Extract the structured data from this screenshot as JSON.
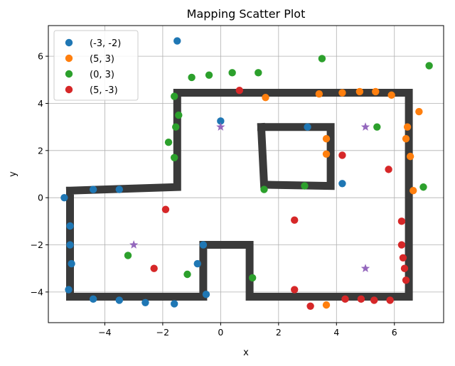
{
  "chart_data": {
    "type": "scatter",
    "title": "Mapping Scatter Plot",
    "xlabel": "x",
    "ylabel": "y",
    "xlim": [
      -5.95,
      7.7
    ],
    "ylim": [
      -5.3,
      7.3
    ],
    "xticks": [
      -4,
      -2,
      0,
      2,
      4,
      6
    ],
    "yticks": [
      -4,
      -2,
      0,
      2,
      4,
      6
    ],
    "xtick_labels": [
      "−4",
      "−2",
      "0",
      "2",
      "4",
      "6"
    ],
    "ytick_labels": [
      "−4",
      "−2",
      "0",
      "2",
      "4",
      "6"
    ],
    "grid": true,
    "legend_position": "top-left",
    "series": [
      {
        "name": "(-3, -2)",
        "color": "#1f77b4",
        "marker": "circle",
        "points": [
          [
            -1.5,
            6.65
          ],
          [
            0.0,
            3.25
          ],
          [
            -5.4,
            0.0
          ],
          [
            -4.4,
            0.35
          ],
          [
            -3.5,
            0.35
          ],
          [
            -5.2,
            -1.2
          ],
          [
            -5.2,
            -2.0
          ],
          [
            -5.15,
            -2.8
          ],
          [
            -5.25,
            -3.9
          ],
          [
            -4.4,
            -4.3
          ],
          [
            -3.5,
            -4.35
          ],
          [
            -2.6,
            -4.45
          ],
          [
            -1.6,
            -4.5
          ],
          [
            -0.5,
            -4.1
          ],
          [
            -0.8,
            -2.8
          ],
          [
            -0.6,
            -2.0
          ],
          [
            3.0,
            3.0
          ],
          [
            4.2,
            0.6
          ]
        ]
      },
      {
        "name": "(5, 3)",
        "color": "#ff7f0e",
        "marker": "circle",
        "points": [
          [
            1.55,
            4.25
          ],
          [
            3.4,
            4.4
          ],
          [
            4.2,
            4.45
          ],
          [
            4.8,
            4.5
          ],
          [
            5.35,
            4.5
          ],
          [
            5.9,
            4.35
          ],
          [
            6.85,
            3.65
          ],
          [
            6.45,
            3.0
          ],
          [
            6.4,
            2.5
          ],
          [
            6.55,
            1.75
          ],
          [
            6.65,
            0.3
          ],
          [
            3.65,
            2.5
          ],
          [
            3.65,
            1.85
          ],
          [
            3.65,
            -4.55
          ]
        ]
      },
      {
        "name": "(0, 3)",
        "color": "#2ca02c",
        "marker": "circle",
        "points": [
          [
            -1.6,
            4.3
          ],
          [
            -1.45,
            3.5
          ],
          [
            -1.55,
            3.0
          ],
          [
            -1.6,
            1.7
          ],
          [
            -1.8,
            2.35
          ],
          [
            -1.0,
            5.1
          ],
          [
            -0.4,
            5.2
          ],
          [
            0.4,
            5.3
          ],
          [
            1.3,
            5.3
          ],
          [
            3.5,
            5.9
          ],
          [
            7.2,
            5.6
          ],
          [
            5.4,
            3.0
          ],
          [
            7.0,
            0.45
          ],
          [
            1.5,
            0.35
          ],
          [
            2.9,
            0.5
          ],
          [
            -3.2,
            -2.45
          ],
          [
            -1.15,
            -3.25
          ],
          [
            1.1,
            -3.4
          ]
        ]
      },
      {
        "name": "(5, -3)",
        "color": "#d62728",
        "marker": "circle",
        "points": [
          [
            0.65,
            4.55
          ],
          [
            4.2,
            1.8
          ],
          [
            5.8,
            1.2
          ],
          [
            -1.9,
            -0.5
          ],
          [
            -2.3,
            -3.0
          ],
          [
            2.55,
            -0.95
          ],
          [
            2.55,
            -3.9
          ],
          [
            3.1,
            -4.6
          ],
          [
            4.3,
            -4.3
          ],
          [
            4.85,
            -4.3
          ],
          [
            5.3,
            -4.35
          ],
          [
            5.85,
            -4.35
          ],
          [
            6.25,
            -1.0
          ],
          [
            6.25,
            -2.0
          ],
          [
            6.3,
            -2.55
          ],
          [
            6.35,
            -3.0
          ],
          [
            6.4,
            -3.5
          ]
        ]
      },
      {
        "name": "",
        "color": "#9467bd",
        "marker": "star",
        "points": [
          [
            0.0,
            3.0
          ],
          [
            5.0,
            3.0
          ],
          [
            -3.0,
            -2.0
          ],
          [
            5.0,
            -3.0
          ]
        ]
      }
    ],
    "walls": [
      [
        [
          -5.2,
          0.3
        ],
        [
          -1.5,
          0.45
        ],
        [
          -1.5,
          4.45
        ],
        [
          6.5,
          4.45
        ],
        [
          6.5,
          -4.2
        ],
        [
          1.0,
          -4.2
        ],
        [
          1.0,
          -2.0
        ],
        [
          -0.6,
          -2.0
        ],
        [
          -0.6,
          -4.2
        ],
        [
          -5.2,
          -4.2
        ],
        [
          -5.2,
          0.3
        ]
      ],
      [
        [
          1.4,
          3.0
        ],
        [
          3.8,
          3.0
        ],
        [
          3.8,
          0.5
        ],
        [
          1.5,
          0.55
        ],
        [
          1.4,
          3.0
        ]
      ]
    ],
    "wall_color": "#3a3a3a"
  }
}
